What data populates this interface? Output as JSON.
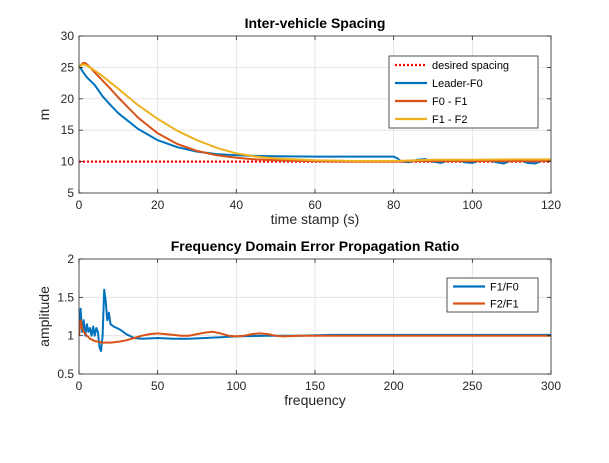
{
  "chart_data": [
    {
      "type": "line",
      "title": "Inter-vehicle Spacing",
      "xlabel": "time stamp (s)",
      "ylabel": "m",
      "xlim": [
        0,
        120
      ],
      "ylim": [
        5,
        30
      ],
      "xticks": [
        0,
        20,
        40,
        60,
        80,
        100,
        120
      ],
      "yticks": [
        5,
        10,
        15,
        20,
        25,
        30
      ],
      "grid": true,
      "legend": "top-right",
      "series": [
        {
          "name": "desired spacing",
          "color": "#ff0000",
          "style": "dotted",
          "x": [
            0,
            120
          ],
          "y": [
            10,
            10
          ]
        },
        {
          "name": "Leader-F0",
          "color": "#0072bd",
          "x": [
            0,
            1,
            2,
            3,
            4,
            6,
            8,
            10,
            15,
            20,
            25,
            30,
            35,
            40,
            45,
            50,
            60,
            70,
            80,
            81,
            82,
            84,
            86,
            88,
            90,
            92,
            94,
            96,
            98,
            100,
            102,
            104,
            106,
            108,
            110,
            112,
            114,
            116,
            118,
            120
          ],
          "y": [
            25.3,
            24.3,
            23.4,
            22.8,
            22.2,
            20.4,
            19.0,
            17.7,
            15.2,
            13.4,
            12.3,
            11.6,
            11.2,
            11.0,
            10.9,
            10.85,
            10.8,
            10.8,
            10.8,
            10.5,
            10.0,
            9.9,
            10.3,
            10.4,
            10.0,
            9.8,
            10.2,
            10.3,
            9.9,
            9.8,
            10.2,
            10.3,
            9.9,
            9.7,
            10.2,
            10.3,
            9.8,
            9.7,
            10.2,
            10.1
          ]
        },
        {
          "name": "F0 - F1",
          "color": "#d95319",
          "x": [
            0,
            1,
            1.5,
            2,
            3,
            4,
            6,
            8,
            10,
            15,
            20,
            25,
            30,
            35,
            40,
            45,
            50,
            60,
            70,
            80,
            84,
            88,
            92,
            96,
            100,
            104,
            108,
            112,
            116,
            120
          ],
          "y": [
            25.0,
            25.7,
            25.7,
            25.5,
            24.9,
            24.2,
            22.9,
            21.6,
            20.2,
            17.0,
            14.5,
            12.8,
            11.7,
            11.0,
            10.6,
            10.35,
            10.2,
            10.05,
            10.0,
            10.0,
            10.05,
            10.1,
            10.05,
            10.1,
            10.05,
            10.15,
            10.05,
            10.1,
            10.05,
            10.1
          ]
        },
        {
          "name": "F1 - F2",
          "color": "#edb120",
          "x": [
            0,
            1,
            2,
            4,
            6,
            10,
            15,
            20,
            25,
            30,
            35,
            40,
            45,
            50,
            60,
            70,
            80,
            90,
            100,
            110,
            120
          ],
          "y": [
            25.0,
            25.5,
            25.3,
            24.5,
            23.6,
            21.6,
            19.0,
            16.8,
            14.9,
            13.4,
            12.2,
            11.3,
            10.8,
            10.5,
            10.2,
            10.1,
            10.1,
            10.3,
            10.3,
            10.35,
            10.35
          ]
        }
      ]
    },
    {
      "type": "line",
      "title": "Frequency Domain Error Propagation Ratio",
      "xlabel": "frequency",
      "ylabel": "amplitude",
      "xlim": [
        0,
        300
      ],
      "ylim": [
        0.5,
        2
      ],
      "xticks": [
        0,
        50,
        100,
        150,
        200,
        250,
        300
      ],
      "yticks": [
        0.5,
        1,
        1.5,
        2
      ],
      "grid": true,
      "legend": "top-right",
      "series": [
        {
          "name": "F1/F0",
          "color": "#0072bd",
          "x": [
            0,
            1,
            2,
            3,
            4,
            5,
            6,
            7,
            8,
            9,
            10,
            11,
            12,
            13,
            14,
            15,
            16,
            17,
            18,
            19,
            20,
            22,
            24,
            26,
            28,
            30,
            35,
            40,
            50,
            60,
            70,
            80,
            90,
            100,
            120,
            140,
            160,
            200,
            250,
            300
          ],
          "y": [
            1.0,
            1.35,
            1.05,
            1.2,
            1.0,
            1.15,
            1.05,
            1.1,
            1.0,
            1.12,
            1.0,
            1.1,
            1.05,
            0.85,
            0.8,
            1.0,
            1.6,
            1.45,
            1.2,
            1.3,
            1.15,
            1.12,
            1.1,
            1.08,
            1.05,
            1.02,
            0.97,
            0.96,
            0.97,
            0.96,
            0.96,
            0.97,
            0.98,
            0.99,
            1.0,
            1.0,
            1.01,
            1.01,
            1.01,
            1.01
          ]
        },
        {
          "name": "F2/F1",
          "color": "#d95319",
          "x": [
            0,
            1,
            2,
            3,
            5,
            7,
            10,
            15,
            20,
            25,
            30,
            35,
            40,
            45,
            50,
            55,
            60,
            65,
            70,
            75,
            80,
            85,
            90,
            95,
            100,
            105,
            110,
            115,
            120,
            125,
            130,
            140,
            150,
            200,
            250,
            300
          ],
          "y": [
            1.0,
            1.2,
            1.1,
            1.05,
            1.0,
            0.96,
            0.93,
            0.91,
            0.91,
            0.92,
            0.94,
            0.97,
            1.0,
            1.02,
            1.03,
            1.02,
            1.01,
            1.0,
            1.0,
            1.02,
            1.04,
            1.05,
            1.03,
            1.0,
            0.99,
            1.0,
            1.02,
            1.03,
            1.02,
            1.0,
            0.99,
            1.0,
            1.0,
            1.0,
            1.0,
            1.0
          ]
        }
      ]
    }
  ]
}
